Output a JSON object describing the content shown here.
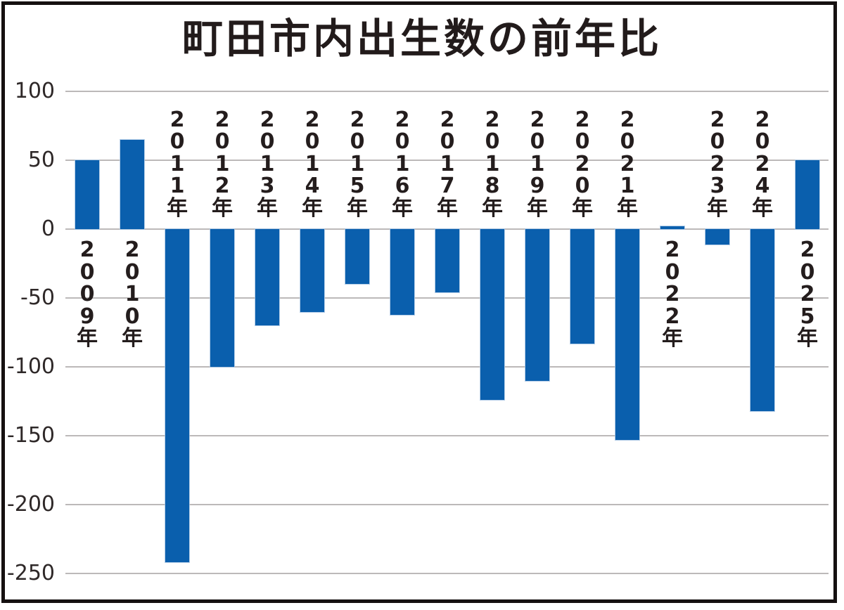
{
  "title": "町田市内出生数の前年比",
  "colors": {
    "bar": "#0a5fad",
    "bar_edge": "#a8c6e4",
    "grid": "#bcb9b9",
    "title_text": "#221b1b",
    "tick_text": "#2e2828",
    "frame": "#151010",
    "background": "#ffffff"
  },
  "chart_data": {
    "type": "bar",
    "title": "町田市内出生数の前年比",
    "categories": [
      "2009年",
      "2010年",
      "2011年",
      "2012年",
      "2013年",
      "2014年",
      "2015年",
      "2016年",
      "2017年",
      "2018年",
      "2019年",
      "2020年",
      "2021年",
      "2022年",
      "2023年",
      "2024年",
      "2025年"
    ],
    "values": [
      50,
      65,
      -242,
      -100,
      -70,
      -60,
      -40,
      -62,
      -46,
      -124,
      -110,
      -83,
      -153,
      2,
      -11,
      -132,
      50
    ],
    "xlabel": "",
    "ylabel": "",
    "ylim": [
      -250,
      100
    ],
    "yticks": [
      100,
      50,
      0,
      -50,
      -100,
      -150,
      -200,
      -250
    ],
    "grid": true,
    "legend": false,
    "bar_color": "#0a5fad",
    "category_label_style": "vertical-upright, placed on opposite side of zero line from bar"
  }
}
